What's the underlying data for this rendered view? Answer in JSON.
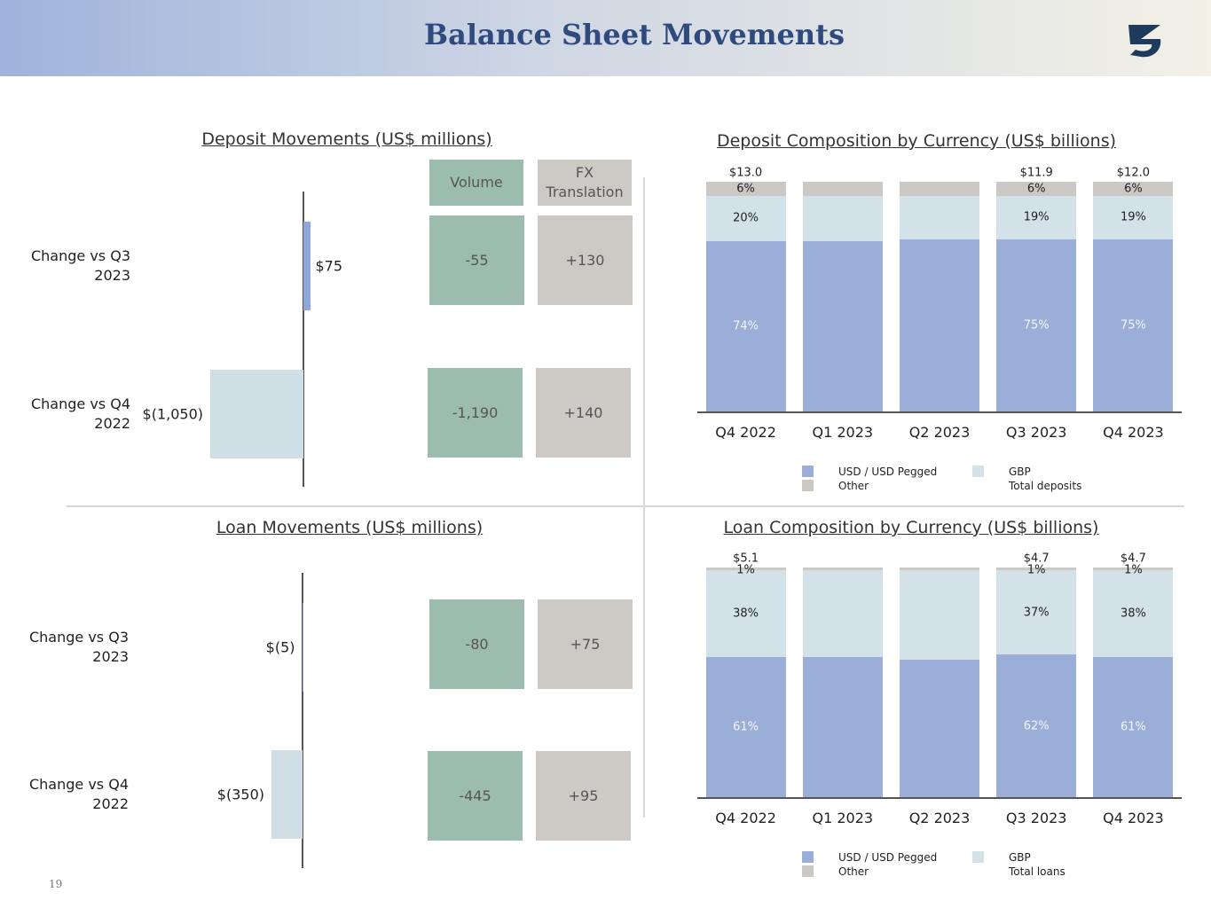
{
  "header": {
    "title": "Balance Sheet Movements"
  },
  "page_number": "19",
  "chart_data": [
    {
      "type": "hbar",
      "title": "Deposit Movements (US$ millions)",
      "categories": [
        "Change vs Q3 2023",
        "Change vs Q4 2022"
      ],
      "values": [
        75,
        -1050
      ],
      "value_labels": [
        "$75",
        "$(1,050)"
      ],
      "colors": [
        "#8fa8d8",
        "#d0dfe6"
      ],
      "table": {
        "columns": [
          "Volume",
          "FX Translation"
        ],
        "rows": [
          [
            "-55",
            "+130"
          ],
          [
            "-1,190",
            "+140"
          ]
        ]
      }
    },
    {
      "type": "stacked_bar",
      "title": "Deposit Composition by Currency (US$ billions)",
      "categories": [
        "Q4 2022",
        "Q1 2023",
        "Q2 2023",
        "Q3 2023",
        "Q4 2023"
      ],
      "ylim": [
        0,
        100
      ],
      "series": [
        {
          "name": "USD / USD Pegged",
          "color": "#9aaed8",
          "values": [
            74,
            74,
            75,
            75,
            75
          ],
          "value_labels": [
            "74%",
            null,
            null,
            "75%",
            "75%"
          ]
        },
        {
          "name": "GBP",
          "color": "#d3e1e8",
          "values": [
            20,
            20,
            19,
            19,
            19
          ],
          "value_labels": [
            "20%",
            null,
            null,
            "19%",
            "19%"
          ]
        },
        {
          "name": "Other",
          "color": "#ccc8c4",
          "values": [
            6,
            6,
            6,
            6,
            6
          ],
          "value_labels": [
            "6%",
            null,
            null,
            "6%",
            "6%"
          ]
        }
      ],
      "totals": {
        "name": "Total deposits",
        "values": [
          13.0,
          null,
          null,
          11.9,
          12.0
        ],
        "value_labels": [
          "$13.0",
          null,
          null,
          "$11.9",
          "$12.0"
        ]
      }
    },
    {
      "type": "hbar",
      "title": "Loan Movements (US$ millions)",
      "categories": [
        "Change vs Q3 2023",
        "Change vs Q4 2022"
      ],
      "values": [
        -5,
        -350
      ],
      "value_labels": [
        "$(5)",
        "$(350)"
      ],
      "colors": [
        "#8fa8d8",
        "#d0dfe6"
      ],
      "table": {
        "rows": [
          [
            "-80",
            "+75"
          ],
          [
            "-445",
            "+95"
          ]
        ]
      }
    },
    {
      "type": "stacked_bar",
      "title": "Loan Composition by Currency (US$ billions)",
      "categories": [
        "Q4 2022",
        "Q1 2023",
        "Q2 2023",
        "Q3 2023",
        "Q4 2023"
      ],
      "ylim": [
        0,
        100
      ],
      "series": [
        {
          "name": "USD / USD Pegged",
          "color": "#9aaed8",
          "values": [
            61,
            61,
            60,
            62,
            61
          ],
          "value_labels": [
            "61%",
            null,
            null,
            "62%",
            "61%"
          ]
        },
        {
          "name": "GBP",
          "color": "#d3e1e8",
          "values": [
            38,
            38,
            39,
            37,
            38
          ],
          "value_labels": [
            "38%",
            null,
            null,
            "37%",
            "38%"
          ]
        },
        {
          "name": "Other",
          "color": "#ccc8c4",
          "values": [
            1,
            1,
            1,
            1,
            1
          ],
          "value_labels": [
            "1%",
            null,
            null,
            "1%",
            "1%"
          ]
        }
      ],
      "totals": {
        "name": "Total loans",
        "values": [
          5.1,
          null,
          null,
          4.7,
          4.7
        ],
        "value_labels": [
          "$5.1",
          null,
          null,
          "$4.7",
          "$4.7"
        ]
      }
    }
  ]
}
